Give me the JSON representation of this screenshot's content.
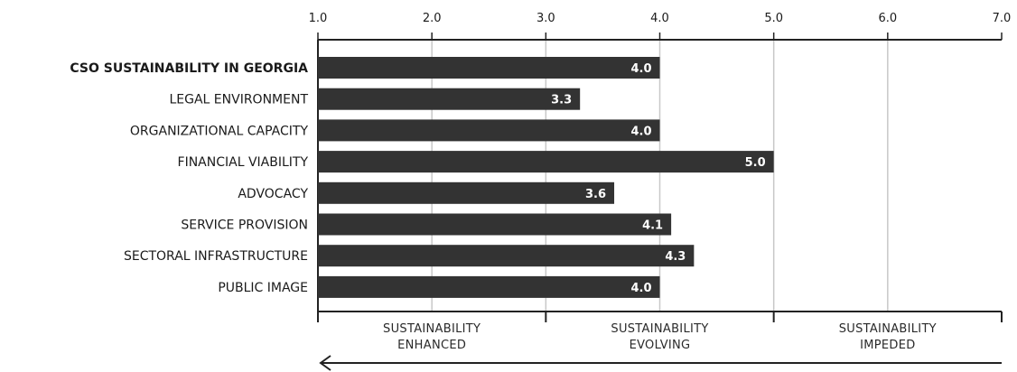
{
  "chart_data": {
    "type": "bar",
    "orientation": "horizontal",
    "categories": [
      "CSO SUSTAINABILITY IN GEORGIA",
      "LEGAL ENVIRONMENT",
      "ORGANIZATIONAL CAPACITY",
      "FINANCIAL VIABILITY",
      "ADVOCACY",
      "SERVICE PROVISION",
      "SECTORAL INFRASTRUCTURE",
      "PUBLIC IMAGE"
    ],
    "values": [
      4.0,
      3.3,
      4.0,
      5.0,
      3.6,
      4.1,
      4.3,
      4.0
    ],
    "value_labels": [
      "4.0",
      "3.3",
      "4.0",
      "5.0",
      "3.6",
      "4.1",
      "4.3",
      "4.0"
    ],
    "bold_category_index": 0,
    "xlim": [
      1.0,
      7.0
    ],
    "x_ticks": [
      1.0,
      2.0,
      3.0,
      4.0,
      5.0,
      6.0,
      7.0
    ],
    "x_tick_labels": [
      "1.0",
      "2.0",
      "3.0",
      "4.0",
      "5.0",
      "6.0",
      "7.0"
    ],
    "x_axis_position": "top",
    "grid": true,
    "zones": [
      {
        "range": [
          1.0,
          3.0
        ],
        "line1": "SUSTAINABILITY",
        "line2": "ENHANCED"
      },
      {
        "range": [
          3.0,
          5.0
        ],
        "line1": "SUSTAINABILITY",
        "line2": "EVOLVING"
      },
      {
        "range": [
          5.0,
          7.0
        ],
        "line1": "SUSTAINABILITY",
        "line2": "IMPEDED"
      }
    ],
    "arrow_direction": "left",
    "colors": {
      "bar": "#333333",
      "grid": "#c8c8c8",
      "axis": "#222222"
    }
  }
}
